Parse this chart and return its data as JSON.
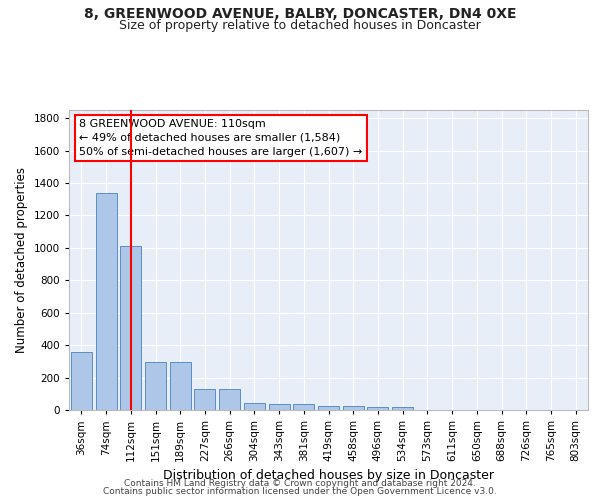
{
  "title": "8, GREENWOOD AVENUE, BALBY, DONCASTER, DN4 0XE",
  "subtitle": "Size of property relative to detached houses in Doncaster",
  "xlabel": "Distribution of detached houses by size in Doncaster",
  "ylabel": "Number of detached properties",
  "categories": [
    "36sqm",
    "74sqm",
    "112sqm",
    "151sqm",
    "189sqm",
    "227sqm",
    "266sqm",
    "304sqm",
    "343sqm",
    "381sqm",
    "419sqm",
    "458sqm",
    "496sqm",
    "534sqm",
    "573sqm",
    "611sqm",
    "650sqm",
    "688sqm",
    "726sqm",
    "765sqm",
    "803sqm"
  ],
  "values": [
    355,
    1340,
    1010,
    295,
    295,
    130,
    130,
    42,
    38,
    38,
    22,
    22,
    20,
    20,
    0,
    0,
    0,
    0,
    0,
    0,
    0
  ],
  "bar_color": "#aec6e8",
  "bar_edge_color": "#5a8fc4",
  "bg_color": "#e8eef8",
  "grid_color": "#ffffff",
  "annotation_line1": "8 GREENWOOD AVENUE: 110sqm",
  "annotation_line2": "← 49% of detached houses are smaller (1,584)",
  "annotation_line3": "50% of semi-detached houses are larger (1,607) →",
  "red_line_x": 2.0,
  "ylim_max": 1850,
  "footer_line1": "Contains HM Land Registry data © Crown copyright and database right 2024.",
  "footer_line2": "Contains public sector information licensed under the Open Government Licence v3.0.",
  "title_fontsize": 10,
  "subtitle_fontsize": 9,
  "ylabel_fontsize": 8.5,
  "xlabel_fontsize": 9,
  "tick_fontsize": 7.5,
  "annot_fontsize": 8,
  "footer_fontsize": 6.5
}
